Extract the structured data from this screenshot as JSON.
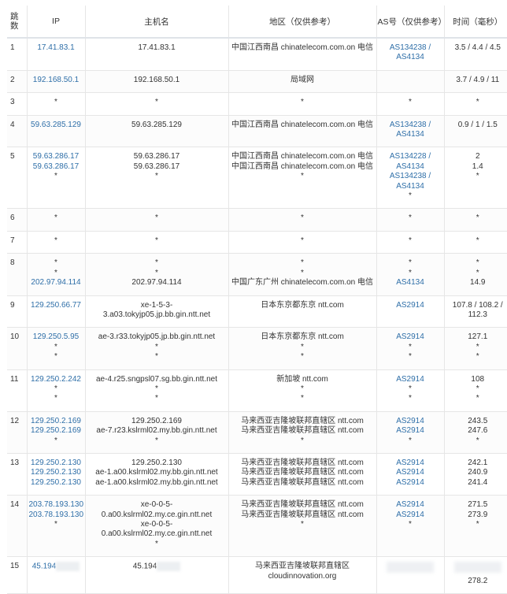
{
  "headers": {
    "hop": "跳数",
    "ip": "IP",
    "host": "主机名",
    "region": "地区（仅供参考）",
    "as": "AS号（仅供参考）",
    "time": "时间（毫秒）"
  },
  "colors": {
    "link": "#2f6fa8",
    "text": "#333333",
    "border": "#e6e6e6"
  },
  "rows": [
    {
      "hop": "1",
      "ip": [
        "17.41.83.1"
      ],
      "host": [
        "17.41.83.1"
      ],
      "region": [
        "中国江西南昌 chinatelecom.com.on 电信"
      ],
      "as": [
        "AS134238 /",
        "AS4134"
      ],
      "time": [
        "3.5 / 4.4 / 4.5"
      ]
    },
    {
      "hop": "2",
      "ip": [
        "192.168.50.1"
      ],
      "host": [
        "192.168.50.1"
      ],
      "region": [
        "局域网"
      ],
      "as": [],
      "time": [
        "3.7 / 4.9 / 11"
      ]
    },
    {
      "hop": "3",
      "ip": [
        "*"
      ],
      "host": [
        "*"
      ],
      "region": [
        "*"
      ],
      "as": [
        "*"
      ],
      "time": [
        "*"
      ]
    },
    {
      "hop": "4",
      "ip": [
        "59.63.285.129"
      ],
      "host": [
        "59.63.285.129"
      ],
      "region": [
        "中国江西南昌 chinatelecom.com.on 电信"
      ],
      "as": [
        "AS134238 /",
        "AS4134"
      ],
      "time": [
        "0.9 / 1 / 1.5"
      ]
    },
    {
      "hop": "5",
      "ip": [
        "59.63.286.17",
        "59.63.286.17",
        "*"
      ],
      "host": [
        "59.63.286.17",
        "59.63.286.17",
        "*"
      ],
      "region": [
        "中国江西南昌 chinatelecom.com.on 电信",
        "中国江西南昌 chinatelecom.com.on 电信",
        "*"
      ],
      "as": [
        "AS134228 /",
        "AS4134",
        "AS134238 /",
        "AS4134",
        "*"
      ],
      "time": [
        "2",
        "1.4",
        "*"
      ]
    },
    {
      "hop": "6",
      "ip": [
        "*"
      ],
      "host": [
        "*"
      ],
      "region": [
        "*"
      ],
      "as": [
        "*"
      ],
      "time": [
        "*"
      ]
    },
    {
      "hop": "7",
      "ip": [
        "*"
      ],
      "host": [
        "*"
      ],
      "region": [
        "*"
      ],
      "as": [
        "*"
      ],
      "time": [
        "*"
      ]
    },
    {
      "hop": "8",
      "ip": [
        "*",
        "*",
        "202.97.94.114"
      ],
      "host": [
        "*",
        "*",
        "202.97.94.114"
      ],
      "region": [
        "*",
        "*",
        "中国广东广州 chinatelecom.com.on 电信"
      ],
      "as": [
        "*",
        "*",
        "AS4134"
      ],
      "time": [
        "*",
        "*",
        "14.9"
      ]
    },
    {
      "hop": "9",
      "ip": [
        "129.250.66.77"
      ],
      "host": [
        "xe-1-5-3-",
        "3.a03.tokyjp05.jp.bb.gin.ntt.net"
      ],
      "region": [
        "日本东京都东京 ntt.com"
      ],
      "as": [
        "AS2914"
      ],
      "time": [
        "107.8 / 108.2 /",
        "112.3"
      ]
    },
    {
      "hop": "10",
      "ip": [
        "129.250.5.95",
        "*",
        "*"
      ],
      "host": [
        "ae-3.r33.tokyjp05.jp.bb.gin.ntt.net",
        "*",
        "*"
      ],
      "region": [
        "日本东京都东京 ntt.com",
        "*",
        "*"
      ],
      "as": [
        "AS2914",
        "*",
        "*"
      ],
      "time": [
        "127.1",
        "*",
        "*"
      ]
    },
    {
      "hop": "11",
      "ip": [
        "129.250.2.242",
        "*",
        "*"
      ],
      "host": [
        "ae-4.r25.sngpsl07.sg.bb.gin.ntt.net",
        "*",
        "*"
      ],
      "region": [
        "新加坡 ntt.com",
        "*",
        "*"
      ],
      "as": [
        "AS2914",
        "*",
        "*"
      ],
      "time": [
        "108",
        "*",
        "*"
      ]
    },
    {
      "hop": "12",
      "ip": [
        "129.250.2.169",
        "129.250.2.169",
        "*"
      ],
      "host": [
        "129.250.2.169",
        "ae-7.r23.kslrml02.my.bb.gin.ntt.net",
        "*"
      ],
      "region": [
        "马来西亚吉隆坡联邦直辖区 ntt.com",
        "马来西亚吉隆坡联邦直辖区 ntt.com",
        "*"
      ],
      "as": [
        "AS2914",
        "AS2914",
        "*"
      ],
      "time": [
        "243.5",
        "247.6",
        "*"
      ]
    },
    {
      "hop": "13",
      "ip": [
        "129.250.2.130",
        "129.250.2.130",
        "129.250.2.130"
      ],
      "host": [
        "129.250.2.130",
        "ae-1.a00.kslrml02.my.bb.gin.ntt.net",
        "ae-1.a00.kslrml02.my.bb.gin.ntt.net"
      ],
      "region": [
        "马来西亚吉隆坡联邦直辖区 ntt.com",
        "马来西亚吉隆坡联邦直辖区 ntt.com",
        "马来西亚吉隆坡联邦直辖区 ntt.com"
      ],
      "as": [
        "AS2914",
        "AS2914",
        "AS2914"
      ],
      "time": [
        "242.1",
        "240.9",
        "241.4"
      ]
    },
    {
      "hop": "14",
      "ip": [
        "203.78.193.130",
        "203.78.193.130",
        "*"
      ],
      "host": [
        "xe-0-0-5-",
        "0.a00.kslrml02.my.ce.gin.ntt.net",
        "xe-0-0-5-",
        "0.a00.kslrml02.my.ce.gin.ntt.net",
        "*"
      ],
      "region": [
        "马来西亚吉隆坡联邦直辖区 ntt.com",
        "马来西亚吉隆坡联邦直辖区 ntt.com",
        "*"
      ],
      "as": [
        "AS2914",
        "AS2914",
        "*"
      ],
      "time": [
        "271.5",
        "273.9",
        "*"
      ]
    },
    {
      "hop": "15",
      "ip": [
        "45.194"
      ],
      "host": [
        "45.194"
      ],
      "region": [
        "马来西亚吉隆坡联邦直辖区",
        "cloudinnovation.org"
      ],
      "as": [],
      "time": [
        "",
        "278.2"
      ]
    }
  ]
}
